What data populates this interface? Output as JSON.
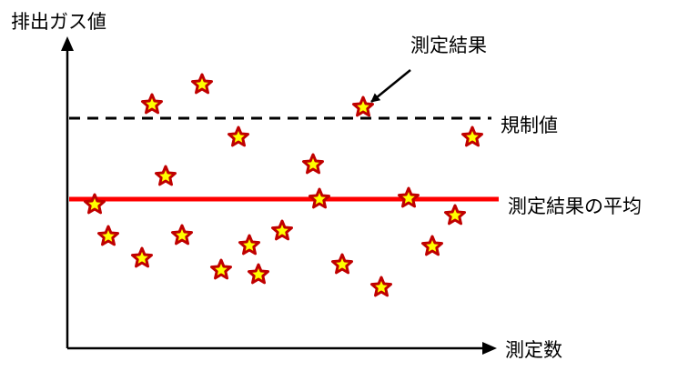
{
  "chart_data": {
    "type": "scatter",
    "axes": {
      "y_label": "排出ガス値",
      "x_label": "測定数"
    },
    "reference_lines": [
      {
        "key": "limit",
        "label": "規制値",
        "style": "dashed",
        "color": "#000000"
      },
      {
        "key": "average",
        "label": "測定結果の平均",
        "style": "solid",
        "color": "#ff0000"
      }
    ],
    "callout": {
      "label": "測定結果"
    },
    "marker": {
      "shape": "star",
      "fill": "#ffff00",
      "stroke": "#c00000"
    },
    "grid": false,
    "legend": "none"
  }
}
